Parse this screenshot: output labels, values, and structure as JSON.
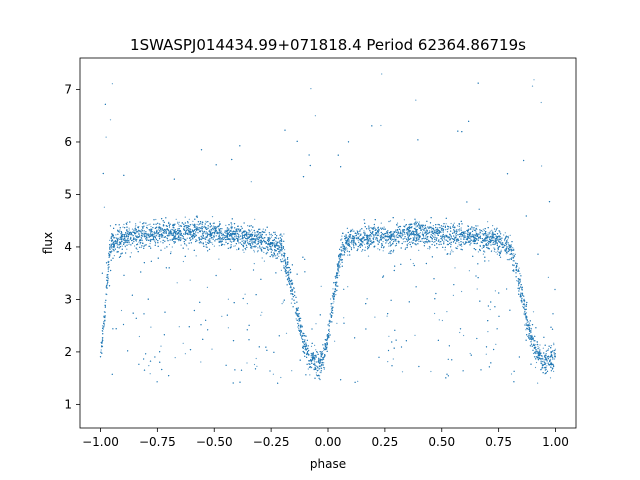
{
  "chart_data": {
    "type": "scatter",
    "title": "1SWASPJ014434.99+071818.4 Period 62364.86719s",
    "xlabel": "phase",
    "ylabel": "flux",
    "xlim": [
      -1.09,
      1.09
    ],
    "ylim": [
      0.55,
      7.6
    ],
    "xticks": [
      -1.0,
      -0.75,
      -0.5,
      -0.25,
      0.0,
      0.25,
      0.5,
      0.75,
      1.0
    ],
    "xtick_labels": [
      "−1.00",
      "−0.75",
      "−0.50",
      "−0.25",
      "0.00",
      "0.25",
      "0.50",
      "0.75",
      "1.00"
    ],
    "yticks": [
      1,
      2,
      3,
      4,
      5,
      6,
      7
    ],
    "ytick_labels": [
      "1",
      "2",
      "3",
      "4",
      "5",
      "6",
      "7"
    ],
    "grid": false,
    "legend": "none",
    "marker_color": "#1f77b4",
    "series": [
      {
        "x": [
          -1.0,
          -0.99,
          -0.98,
          -0.97,
          -0.96,
          -0.95,
          -0.93,
          -0.9,
          -0.85,
          -0.8,
          -0.75,
          -0.7,
          -0.65,
          -0.6,
          -0.55,
          -0.5,
          -0.45,
          -0.4,
          -0.35,
          -0.3,
          -0.25,
          -0.2,
          -0.18,
          -0.16,
          -0.14,
          -0.12,
          -0.1,
          -0.08,
          -0.06,
          -0.05,
          -0.04,
          -0.02,
          0.0,
          0.02,
          0.04,
          0.06,
          0.08,
          0.1,
          0.15,
          0.2,
          0.25,
          0.3,
          0.35,
          0.4,
          0.45,
          0.5,
          0.55,
          0.6,
          0.65,
          0.7,
          0.75,
          0.8,
          0.82,
          0.84,
          0.86,
          0.88,
          0.9,
          0.92,
          0.94,
          0.95,
          0.96,
          0.98,
          1.0
        ],
        "y": [
          1.9,
          2.3,
          2.8,
          3.4,
          3.9,
          4.05,
          4.1,
          4.15,
          4.2,
          4.22,
          4.25,
          4.27,
          4.28,
          4.28,
          4.27,
          4.25,
          4.22,
          4.2,
          4.15,
          4.12,
          4.05,
          3.95,
          3.6,
          3.2,
          2.8,
          2.4,
          2.1,
          1.9,
          1.8,
          1.75,
          1.78,
          1.9,
          2.3,
          2.9,
          3.5,
          3.95,
          4.05,
          4.1,
          4.15,
          4.18,
          4.2,
          4.22,
          4.24,
          4.25,
          4.25,
          4.24,
          4.22,
          4.2,
          4.18,
          4.15,
          4.1,
          4.0,
          3.7,
          3.3,
          2.9,
          2.5,
          2.2,
          2.0,
          1.85,
          1.8,
          1.8,
          1.85,
          1.9
        ]
      }
    ],
    "baseline_flux": 4.0
  }
}
